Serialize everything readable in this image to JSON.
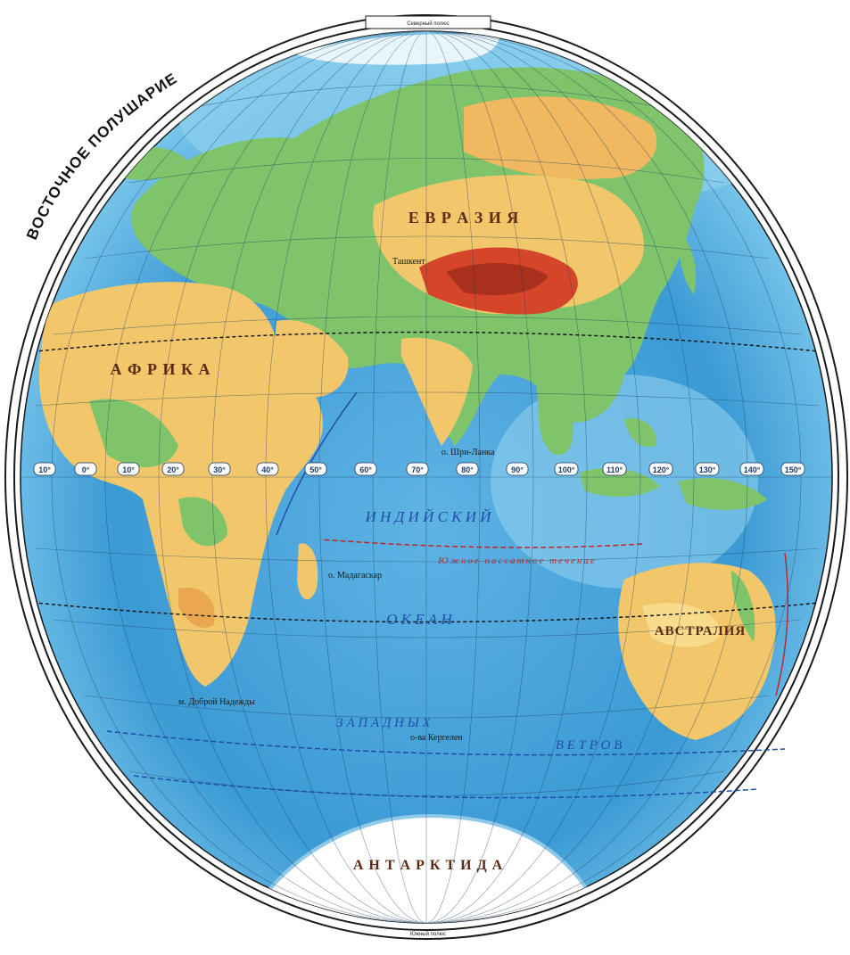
{
  "map": {
    "title": "ВОСТОЧНОЕ ПОЛУШАРИЕ",
    "north_pole_label": "Северный полюс",
    "south_pole_label": "Южный полюс",
    "meridian_labels": [
      "10°",
      "0°",
      "10°",
      "20°",
      "30°",
      "40°",
      "50°",
      "60°",
      "70°",
      "80°",
      "90°",
      "100°",
      "110°",
      "120°",
      "130°",
      "140°",
      "150°"
    ],
    "continents": {
      "eurasia": "Е В Р А З И Я",
      "africa": "А Ф Р И К А",
      "australia": "АВСТРАЛИЯ",
      "antarctica": "А Н Т А Р К Т И Д А"
    },
    "oceans": {
      "indian": "И Н Д И Й С К И Й",
      "indian_2": "О К Е А Н"
    },
    "currents": {
      "south_trade_wind": "Южное пассатное течение",
      "westerly_winds_1": "З А П А Д Н Ы Х",
      "westerly_winds_2": "В Е Т Р О В"
    },
    "places": {
      "madagascar": "о. Мадагаскар",
      "kerguelen": "о-ва Кергелен",
      "good_hope": "м. Доброй Надежды",
      "tashkent": "Ташкент",
      "sri_lanka": "о. Шри-Ланка"
    },
    "colors": {
      "ocean_deep": "#2f8fc9",
      "ocean_shallow": "#8fd0ee",
      "lowland": "#7fc46a",
      "upland": "#f2c66a",
      "mountain": "#d4452a",
      "ice": "#ffffff",
      "frame": "#1a1a1a"
    }
  }
}
